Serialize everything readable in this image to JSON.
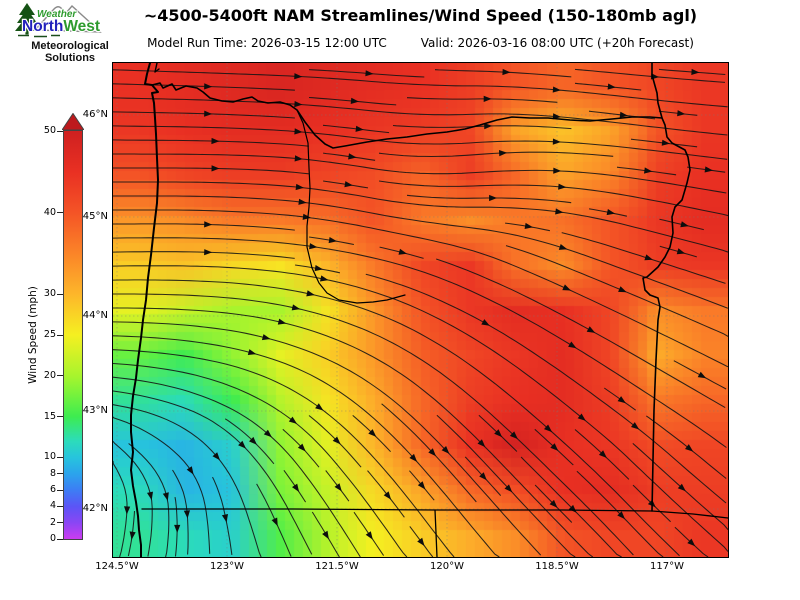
{
  "logo": {
    "weather": "Weather",
    "north": "North",
    "west": "West",
    "sub_line1": "Meteorological",
    "sub_line2": "Solutions"
  },
  "header": {
    "title": "~4500-5400ft NAM Streamlines/Wind Speed (150-180mb agl)",
    "model_run": "Model Run Time: 2026-03-15 12:00 UTC",
    "valid": "Valid: 2026-03-16 08:00 UTC  (+20h Forecast)"
  },
  "colorbar": {
    "label": "Wind Speed (mph)",
    "min": 0,
    "max": 50,
    "ticks": [
      0,
      2,
      4,
      6,
      8,
      10,
      15,
      20,
      25,
      30,
      40,
      50
    ],
    "over_color": "#bd191d",
    "outline_color": "#444444",
    "stops": [
      [
        0,
        "#cb3cf0"
      ],
      [
        2,
        "#8a46f4"
      ],
      [
        4,
        "#5b55f6"
      ],
      [
        6,
        "#3d7df4"
      ],
      [
        8,
        "#2ba4ec"
      ],
      [
        10,
        "#27c4dd"
      ],
      [
        12,
        "#2cdcbb"
      ],
      [
        15,
        "#3dec50"
      ],
      [
        18,
        "#7df33a"
      ],
      [
        20,
        "#a8f42d"
      ],
      [
        25,
        "#f5f021"
      ],
      [
        30,
        "#fdb62a"
      ],
      [
        35,
        "#fb8428"
      ],
      [
        40,
        "#f45426"
      ],
      [
        45,
        "#e93023"
      ],
      [
        50,
        "#cf2020"
      ]
    ]
  },
  "axes": {
    "lon_labels": [
      "124.5°W",
      "123°W",
      "121.5°W",
      "120°W",
      "118.5°W",
      "117°W"
    ],
    "lat_labels": [
      "46°N",
      "45°N",
      "44°N",
      "43°N",
      "42°N"
    ]
  },
  "chart_data": {
    "type": "heatmap",
    "title": "~4500-5400ft NAM Streamlines/Wind Speed (150-180mb agl)",
    "model_run_time": "2026-03-15 12:00 UTC",
    "valid_time": "2026-03-16 08:00 UTC",
    "forecast_hour": "+20h Forecast",
    "colorbar_label": "Wind Speed (mph)",
    "colorbar_ticks": [
      0,
      2,
      4,
      6,
      8,
      10,
      15,
      20,
      25,
      30,
      40,
      50
    ],
    "x_tick_labels": [
      "124.5°W",
      "123°W",
      "121.5°W",
      "120°W",
      "118.5°W",
      "117°W"
    ],
    "y_tick_labels": [
      "46°N",
      "45°N",
      "44°N",
      "43°N",
      "42°N"
    ],
    "wind_speed_grid_mph": {
      "note": "13 columns west-to-east x 11 rows north-to-south, sampled uniformly across the map area",
      "values": [
        [
          45,
          46,
          47,
          48,
          47,
          46,
          45,
          43,
          40,
          38,
          40,
          42,
          44
        ],
        [
          44,
          45,
          46,
          46,
          45,
          44,
          43,
          42,
          32,
          29,
          32,
          40,
          44
        ],
        [
          40,
          42,
          43,
          43,
          42,
          41,
          38,
          43,
          38,
          32,
          35,
          43,
          45
        ],
        [
          33,
          34,
          36,
          36,
          37,
          40,
          36,
          34,
          36,
          37,
          40,
          44,
          46
        ],
        [
          28,
          29,
          27,
          26,
          30,
          36,
          42,
          44,
          37,
          34,
          40,
          43,
          44
        ],
        [
          24,
          22,
          20,
          20,
          26,
          33,
          40,
          44,
          46,
          45,
          42,
          34,
          36
        ],
        [
          17,
          15,
          19,
          24,
          28,
          33,
          39,
          42,
          44,
          46,
          42,
          31,
          35
        ],
        [
          13,
          12,
          15,
          21,
          26,
          31,
          38,
          43,
          45,
          46,
          43,
          36,
          38
        ],
        [
          10,
          9,
          11,
          19,
          24,
          30,
          38,
          45,
          49,
          45,
          44,
          41,
          42
        ],
        [
          12,
          9,
          10,
          18,
          22,
          27,
          32,
          38,
          41,
          45,
          46,
          43,
          43
        ],
        [
          13,
          12,
          11,
          16,
          21,
          25,
          28,
          31,
          34,
          40,
          42,
          42,
          44
        ]
      ]
    },
    "flow_direction_grid_deg": {
      "note": "streamline direction on same 13x11 sampling; 0 = toward east, positive = toward south",
      "values": [
        [
          2,
          2,
          2,
          2,
          3,
          4,
          3,
          2,
          4,
          5,
          5,
          4,
          4
        ],
        [
          1,
          1,
          2,
          3,
          5,
          6,
          2,
          -2,
          3,
          6,
          7,
          6,
          5
        ],
        [
          0,
          0,
          1,
          3,
          7,
          9,
          1,
          -5,
          -2,
          3,
          6,
          7,
          7
        ],
        [
          0,
          0,
          2,
          4,
          8,
          11,
          6,
          0,
          4,
          9,
          12,
          12,
          11
        ],
        [
          -1,
          0,
          2,
          5,
          9,
          13,
          17,
          21,
          22,
          21,
          19,
          17,
          16
        ],
        [
          0,
          2,
          5,
          10,
          15,
          20,
          25,
          27,
          28,
          27,
          25,
          23,
          21
        ],
        [
          3,
          7,
          12,
          18,
          24,
          29,
          33,
          35,
          35,
          33,
          31,
          28,
          26
        ],
        [
          10,
          18,
          26,
          32,
          37,
          40,
          42,
          42,
          41,
          39,
          36,
          33,
          30
        ],
        [
          50,
          45,
          52,
          50,
          50,
          48,
          48,
          47,
          45,
          43,
          44,
          41,
          38
        ],
        [
          95,
          88,
          80,
          65,
          57,
          54,
          52,
          50,
          47,
          45,
          46,
          43,
          40
        ],
        [
          105,
          100,
          88,
          72,
          62,
          57,
          54,
          51,
          48,
          46,
          47,
          44,
          42
        ]
      ]
    },
    "features": [
      "wind speed minimum (~9 mph, cyan) near the southwest Oregon coast",
      "maximum (~49 mph, dark red) over south-central/southeast Oregon",
      "west-to-east streamlines across the north, turning southward along the southwest coast and southeastward over the southern half"
    ]
  }
}
